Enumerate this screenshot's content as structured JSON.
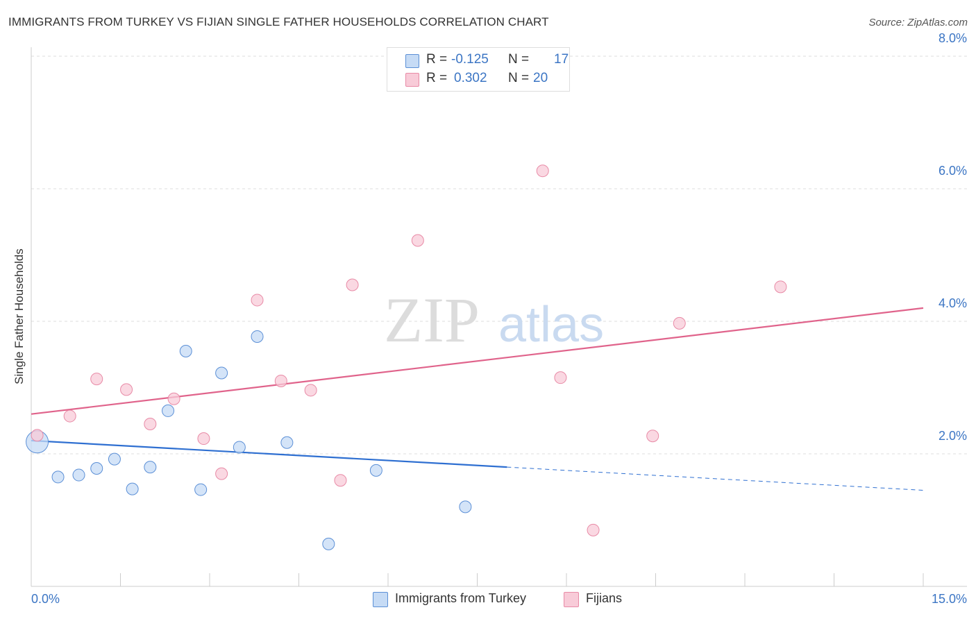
{
  "header": {
    "title": "IMMIGRANTS FROM TURKEY VS FIJIAN SINGLE FATHER HOUSEHOLDS CORRELATION CHART",
    "source": "Source: ZipAtlas.com"
  },
  "watermark": {
    "zip": "ZIP",
    "atlas": "atlas"
  },
  "legend": {
    "r_label": "R =",
    "n_label": "N =",
    "series": [
      {
        "name": "Immigrants from Turkey",
        "r": "-0.125",
        "n": "17"
      },
      {
        "name": "Fijians",
        "r": "0.302",
        "n": "20"
      }
    ]
  },
  "chart_data": {
    "type": "scatter",
    "title": "IMMIGRANTS FROM TURKEY VS FIJIAN SINGLE FATHER HOUSEHOLDS CORRELATION CHART",
    "xlabel": "",
    "ylabel": "Single Father Households",
    "xlim": [
      0,
      15
    ],
    "ylim": [
      0,
      8.2
    ],
    "x_tick_labels": [
      "0.0%",
      "15.0%"
    ],
    "y_ticks": [
      2,
      4,
      6,
      8
    ],
    "y_tick_labels": [
      "2.0%",
      "4.0%",
      "6.0%",
      "8.0%"
    ],
    "grid": true,
    "legend_position": "top-center",
    "series": [
      {
        "name": "Immigrants from Turkey",
        "color": "#5b8fd6",
        "fill": "#c6dbf5",
        "line_color": "#2e6fd1",
        "trend": {
          "x_start": 0,
          "y_start": 2.2,
          "x_solid_end": 8.0,
          "y_solid_end": 1.8,
          "x_end": 15,
          "y_end": 1.45
        },
        "points": [
          {
            "x": 0.1,
            "y": 2.18,
            "big": true
          },
          {
            "x": 0.45,
            "y": 1.65
          },
          {
            "x": 0.8,
            "y": 1.68
          },
          {
            "x": 1.1,
            "y": 1.78
          },
          {
            "x": 1.4,
            "y": 1.92
          },
          {
            "x": 1.7,
            "y": 1.47
          },
          {
            "x": 2.0,
            "y": 1.8
          },
          {
            "x": 2.3,
            "y": 2.65
          },
          {
            "x": 2.6,
            "y": 3.55
          },
          {
            "x": 2.85,
            "y": 1.46
          },
          {
            "x": 3.2,
            "y": 3.22
          },
          {
            "x": 3.5,
            "y": 2.1
          },
          {
            "x": 3.8,
            "y": 3.77
          },
          {
            "x": 4.3,
            "y": 2.17
          },
          {
            "x": 5.0,
            "y": 0.64
          },
          {
            "x": 5.8,
            "y": 1.75
          },
          {
            "x": 7.3,
            "y": 1.2
          }
        ]
      },
      {
        "name": "Fijians",
        "color": "#e88aa6",
        "fill": "#f8cbd8",
        "line_color": "#e0638b",
        "trend": {
          "x_start": 0,
          "y_start": 2.6,
          "x_solid_end": 15,
          "y_solid_end": 4.2,
          "x_end": 15,
          "y_end": 4.2
        },
        "points": [
          {
            "x": 0.1,
            "y": 2.28
          },
          {
            "x": 0.65,
            "y": 2.57
          },
          {
            "x": 1.1,
            "y": 3.13
          },
          {
            "x": 1.6,
            "y": 2.97
          },
          {
            "x": 2.0,
            "y": 2.45
          },
          {
            "x": 2.4,
            "y": 2.83
          },
          {
            "x": 2.9,
            "y": 2.23
          },
          {
            "x": 3.2,
            "y": 1.7
          },
          {
            "x": 3.8,
            "y": 4.32
          },
          {
            "x": 4.2,
            "y": 3.1
          },
          {
            "x": 4.7,
            "y": 2.96
          },
          {
            "x": 5.2,
            "y": 1.6
          },
          {
            "x": 5.4,
            "y": 4.55
          },
          {
            "x": 6.5,
            "y": 5.22
          },
          {
            "x": 8.6,
            "y": 6.27
          },
          {
            "x": 8.9,
            "y": 3.15
          },
          {
            "x": 9.45,
            "y": 0.85
          },
          {
            "x": 10.45,
            "y": 2.27
          },
          {
            "x": 10.9,
            "y": 3.97
          },
          {
            "x": 12.6,
            "y": 4.52
          }
        ]
      }
    ]
  }
}
